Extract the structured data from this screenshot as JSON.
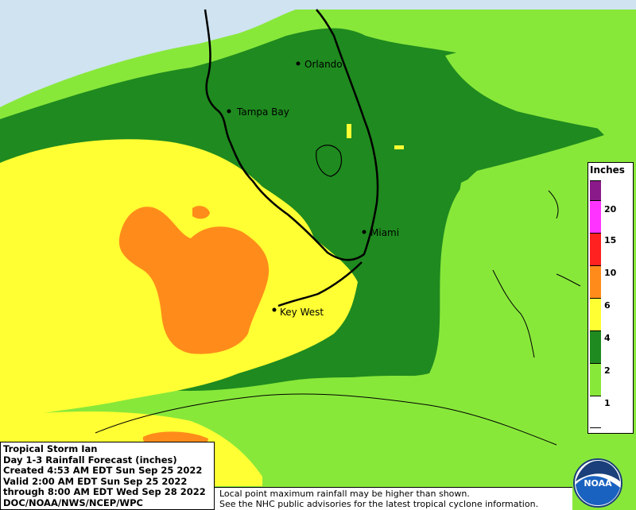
{
  "map": {
    "cities": [
      {
        "name": "Orlando"
      },
      {
        "name": "Tampa Bay"
      },
      {
        "name": "Miami"
      },
      {
        "name": "Key West"
      }
    ]
  },
  "legend": {
    "title": "Inches",
    "ticks": [
      "20",
      "15",
      "10",
      "6",
      "4",
      "2",
      "1"
    ],
    "colors": [
      "#8a1a8a",
      "#ff33ff",
      "#ff2020",
      "#ff8c1a",
      "#ffff33",
      "#1f8a1f",
      "#88e83a",
      "#ffffff"
    ]
  },
  "info": {
    "line1": "Tropical Storm Ian",
    "line2": "Day 1-3 Rainfall Forecast (inches)",
    "line3": "Created 4:53 AM EDT Sun Sep 25 2022",
    "line4": "Valid 2:00 AM EDT Sun Sep 25 2022",
    "line5": "through 8:00 AM EDT Wed Sep 28 2022",
    "line6": "DOC/NOAA/NWS/NCEP/WPC"
  },
  "disclaimer": {
    "line1": "Local point maximum rainfall may be higher than shown.",
    "line2": "See the NHC public advisories for the latest tropical cyclone information."
  },
  "logo": {
    "text": "NOAA",
    "icon": "noaa-logo-icon"
  }
}
